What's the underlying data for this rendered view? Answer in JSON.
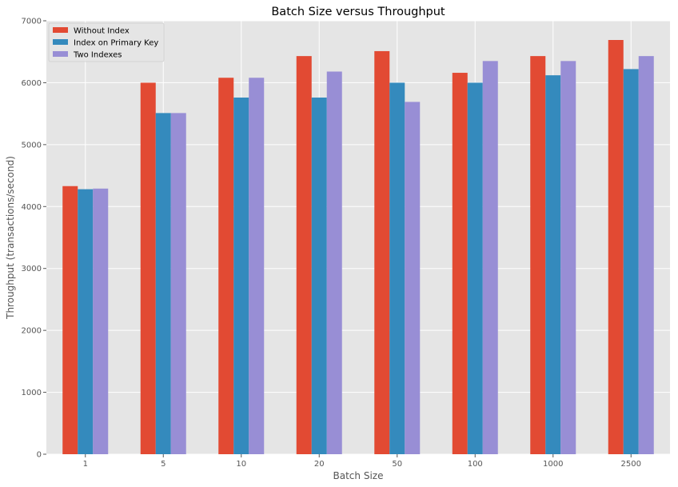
{
  "chart_data": {
    "type": "bar",
    "title": "Batch Size versus Throughput",
    "xlabel": "Batch Size",
    "ylabel": "Throughput (transactions/second)",
    "categories": [
      "1",
      "5",
      "10",
      "20",
      "50",
      "100",
      "1000",
      "2500"
    ],
    "series": [
      {
        "name": "Without Index",
        "color": "#E24A33",
        "values": [
          4330,
          6000,
          6080,
          6430,
          6510,
          6160,
          6430,
          6690
        ]
      },
      {
        "name": "Index on Primary Key",
        "color": "#348ABD",
        "values": [
          4280,
          5510,
          5760,
          5760,
          6000,
          6000,
          6120,
          6220
        ]
      },
      {
        "name": "Two Indexes",
        "color": "#988ED5",
        "values": [
          4290,
          5510,
          6080,
          6180,
          5690,
          6350,
          6350,
          6430
        ]
      }
    ],
    "ylim": [
      0,
      7000
    ],
    "yticks": [
      0,
      1000,
      2000,
      3000,
      4000,
      5000,
      6000,
      7000
    ],
    "grid": true,
    "legend_position": "top-left",
    "background_color": "#E5E5E5",
    "grid_color": "#FFFFFF"
  }
}
